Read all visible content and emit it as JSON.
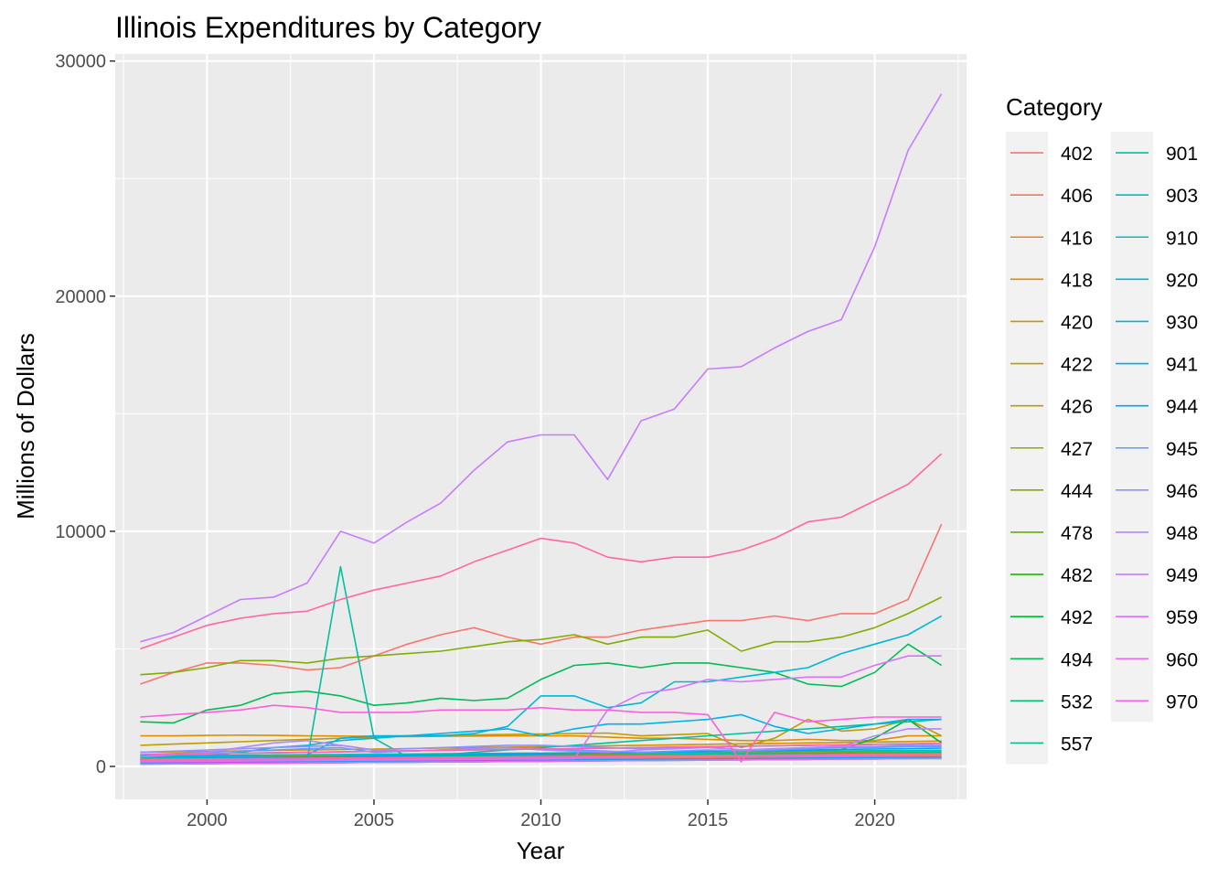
{
  "chart_data": {
    "type": "line",
    "title": "Illinois Expenditures by Category",
    "xlabel": "Year",
    "ylabel": "Millions of Dollars",
    "xlim": [
      1997.25,
      2022.75
    ],
    "ylim": [
      -1400,
      30300
    ],
    "x_ticks": [
      2000,
      2005,
      2010,
      2015,
      2020
    ],
    "y_ticks": [
      0,
      10000,
      20000,
      30000
    ],
    "grid": true,
    "legend": {
      "title": "Category",
      "placement": "right",
      "columns": 2
    },
    "x": [
      1998,
      1999,
      2000,
      2001,
      2002,
      2003,
      2004,
      2005,
      2006,
      2007,
      2008,
      2009,
      2010,
      2011,
      2012,
      2013,
      2014,
      2015,
      2016,
      2017,
      2018,
      2019,
      2020,
      2021,
      2022
    ],
    "series": [
      {
        "name": "402",
        "color": "#F8766D",
        "values": [
          3500,
          4000,
          4400,
          4400,
          4300,
          4100,
          4200,
          4700,
          5200,
          5600,
          5900,
          5500,
          5200,
          5500,
          5500,
          5800,
          6000,
          6200,
          6200,
          6400,
          6200,
          6500,
          6500,
          7100,
          10300
        ]
      },
      {
        "name": "406",
        "color": "#F07E4F",
        "values": [
          200,
          200,
          210,
          220,
          230,
          240,
          250,
          260,
          270,
          280,
          290,
          300,
          310,
          320,
          330,
          340,
          350,
          360,
          370,
          380,
          390,
          400,
          410,
          420,
          430
        ]
      },
      {
        "name": "416",
        "color": "#E7861B",
        "values": [
          300,
          310,
          320,
          330,
          340,
          350,
          360,
          370,
          380,
          390,
          400,
          410,
          420,
          430,
          440,
          450,
          460,
          470,
          480,
          490,
          500,
          510,
          520,
          530,
          540
        ]
      },
      {
        "name": "418",
        "color": "#DB8E00",
        "values": [
          1300,
          1300,
          1320,
          1330,
          1320,
          1300,
          1290,
          1280,
          1270,
          1280,
          1290,
          1300,
          1300,
          1300,
          1250,
          1200,
          1200,
          1150,
          1100,
          1100,
          1150,
          1100,
          1100,
          1300,
          1300
        ]
      },
      {
        "name": "420",
        "color": "#CE9500",
        "values": [
          600,
          620,
          640,
          660,
          680,
          700,
          720,
          740,
          760,
          780,
          800,
          820,
          840,
          860,
          880,
          900,
          920,
          940,
          960,
          980,
          1000,
          1020,
          1040,
          1060,
          1080
        ]
      },
      {
        "name": "422",
        "color": "#BF9C00",
        "values": [
          900,
          950,
          1000,
          1050,
          1100,
          1150,
          1200,
          1250,
          1300,
          1320,
          1340,
          1360,
          1380,
          1400,
          1420,
          1300,
          1350,
          1400,
          800,
          1200,
          2000,
          1500,
          1600,
          2000,
          1300
        ]
      },
      {
        "name": "426",
        "color": "#AEA200",
        "values": [
          100,
          110,
          120,
          130,
          140,
          150,
          160,
          170,
          180,
          190,
          200,
          210,
          220,
          230,
          240,
          250,
          260,
          270,
          280,
          290,
          300,
          310,
          320,
          330,
          340
        ]
      },
      {
        "name": "427",
        "color": "#9AA800",
        "values": [
          400,
          410,
          420,
          430,
          440,
          450,
          460,
          470,
          480,
          490,
          500,
          510,
          520,
          530,
          540,
          550,
          560,
          570,
          580,
          590,
          600,
          610,
          620,
          630,
          640
        ]
      },
      {
        "name": "444",
        "color": "#82AD00",
        "values": [
          3900,
          4000,
          4200,
          4500,
          4500,
          4400,
          4600,
          4700,
          4800,
          4900,
          5100,
          5300,
          5400,
          5600,
          5200,
          5500,
          5500,
          5800,
          4900,
          5300,
          5300,
          5500,
          5900,
          6500,
          7200
        ]
      },
      {
        "name": "478",
        "color": "#61B200",
        "values": [
          150,
          160,
          170,
          180,
          190,
          200,
          210,
          220,
          230,
          240,
          250,
          260,
          270,
          280,
          290,
          300,
          310,
          320,
          330,
          340,
          350,
          360,
          370,
          380,
          390
        ]
      },
      {
        "name": "482",
        "color": "#1EB600",
        "values": [
          250,
          260,
          270,
          280,
          290,
          300,
          310,
          320,
          330,
          340,
          350,
          360,
          370,
          380,
          390,
          400,
          410,
          420,
          430,
          440,
          450,
          460,
          470,
          480,
          490
        ]
      },
      {
        "name": "492",
        "color": "#00B930",
        "values": [
          300,
          320,
          340,
          360,
          380,
          400,
          420,
          440,
          460,
          480,
          500,
          520,
          540,
          560,
          580,
          600,
          620,
          640,
          660,
          680,
          700,
          720,
          1200,
          2000,
          1000
        ]
      },
      {
        "name": "494",
        "color": "#00BC56",
        "values": [
          1900,
          1850,
          2400,
          2600,
          3100,
          3200,
          3000,
          2600,
          2700,
          2900,
          2800,
          2900,
          3700,
          4300,
          4400,
          4200,
          4400,
          4400,
          4200,
          4000,
          3500,
          3400,
          4000,
          5200,
          4300
        ]
      },
      {
        "name": "532",
        "color": "#00BE72",
        "values": [
          500,
          520,
          540,
          560,
          580,
          600,
          620,
          640,
          660,
          680,
          700,
          720,
          740,
          760,
          780,
          800,
          820,
          840,
          860,
          880,
          900,
          920,
          940,
          960,
          980
        ]
      },
      {
        "name": "557",
        "color": "#00BF8A",
        "values": [
          350,
          360,
          370,
          380,
          390,
          400,
          410,
          420,
          430,
          440,
          450,
          460,
          470,
          480,
          490,
          500,
          510,
          520,
          530,
          540,
          550,
          560,
          570,
          580,
          590
        ]
      },
      {
        "name": "901",
        "color": "#00C0A0",
        "values": [
          200,
          210,
          220,
          230,
          240,
          250,
          8500,
          1200,
          400,
          500,
          600,
          700,
          800,
          900,
          1000,
          1100,
          1200,
          1300,
          1400,
          1500,
          1600,
          1700,
          1800,
          1900,
          2000
        ]
      },
      {
        "name": "903",
        "color": "#00BFB4",
        "values": [
          450,
          460,
          470,
          480,
          490,
          500,
          510,
          520,
          530,
          540,
          550,
          560,
          570,
          580,
          590,
          600,
          610,
          620,
          630,
          640,
          650,
          660,
          670,
          680,
          690
        ]
      },
      {
        "name": "910",
        "color": "#00BCC6",
        "values": [
          100,
          110,
          120,
          130,
          140,
          150,
          160,
          170,
          180,
          190,
          200,
          210,
          220,
          230,
          240,
          250,
          260,
          270,
          280,
          290,
          300,
          310,
          320,
          330,
          340
        ]
      },
      {
        "name": "920",
        "color": "#00B8D6",
        "values": [
          300,
          350,
          450,
          600,
          800,
          900,
          1100,
          1200,
          1300,
          1300,
          1400,
          1700,
          3000,
          3000,
          2500,
          2700,
          3600,
          3600,
          3800,
          4000,
          4200,
          4800,
          5200,
          5600,
          6400
        ]
      },
      {
        "name": "930",
        "color": "#00B2E5",
        "values": [
          400,
          420,
          440,
          460,
          480,
          500,
          1200,
          1300,
          1300,
          1400,
          1500,
          1600,
          1300,
          1600,
          1800,
          1800,
          1900,
          2000,
          2200,
          1700,
          1400,
          1600,
          1800,
          2000,
          2000
        ]
      },
      {
        "name": "941",
        "color": "#00ABF1",
        "values": [
          150,
          160,
          170,
          180,
          190,
          200,
          210,
          220,
          230,
          240,
          250,
          260,
          270,
          280,
          290,
          300,
          310,
          320,
          330,
          340,
          350,
          360,
          370,
          380,
          390
        ]
      },
      {
        "name": "944",
        "color": "#00A3FB",
        "values": [
          300,
          320,
          340,
          360,
          380,
          400,
          420,
          440,
          460,
          480,
          500,
          520,
          540,
          560,
          580,
          600,
          620,
          640,
          660,
          680,
          700,
          720,
          740,
          760,
          780
        ]
      },
      {
        "name": "945",
        "color": "#619CFF",
        "values": [
          500,
          550,
          600,
          650,
          700,
          750,
          800,
          600,
          650,
          700,
          750,
          800,
          750,
          700,
          650,
          600,
          650,
          700,
          650,
          700,
          750,
          800,
          800,
          850,
          850
        ]
      },
      {
        "name": "946",
        "color": "#8E92FF",
        "values": [
          600,
          650,
          700,
          750,
          800,
          850,
          900,
          700,
          750,
          800,
          850,
          900,
          900,
          850,
          800,
          750,
          800,
          850,
          700,
          750,
          800,
          850,
          850,
          900,
          900
        ]
      },
      {
        "name": "948",
        "color": "#AF88FF",
        "values": [
          400,
          500,
          600,
          800,
          1000,
          1100,
          900,
          700,
          650,
          700,
          750,
          800,
          700,
          650,
          600,
          700,
          750,
          800,
          700,
          750,
          800,
          850,
          1300,
          1600,
          1600
        ]
      },
      {
        "name": "949",
        "color": "#C77CFF",
        "values": [
          5300,
          5700,
          6400,
          7100,
          7200,
          7800,
          10000,
          9500,
          10400,
          11200,
          12600,
          13800,
          14100,
          14100,
          12200,
          14700,
          15200,
          16900,
          17000,
          17800,
          18500,
          19000,
          22100,
          26200,
          28600
        ]
      },
      {
        "name": "959",
        "color": "#DA72FA",
        "values": [
          200,
          210,
          220,
          230,
          240,
          250,
          260,
          270,
          280,
          290,
          300,
          310,
          320,
          330,
          2400,
          3100,
          3300,
          3700,
          3600,
          3700,
          3800,
          3800,
          4300,
          4700,
          4700
        ]
      },
      {
        "name": "960",
        "color": "#E86AF0",
        "values": [
          100,
          110,
          120,
          130,
          140,
          150,
          160,
          170,
          180,
          190,
          200,
          210,
          220,
          230,
          240,
          250,
          260,
          270,
          280,
          290,
          300,
          310,
          320,
          330,
          340
        ]
      },
      {
        "name": "970",
        "color": "#F365E3",
        "values": [
          250,
          260,
          270,
          280,
          290,
          300,
          310,
          320,
          330,
          340,
          350,
          360,
          370,
          380,
          390,
          400,
          410,
          420,
          430,
          440,
          450,
          460,
          470,
          480,
          490
        ]
      },
      {
        "name": "",
        "color": "#FB61D7",
        "values": [
          2100,
          2200,
          2300,
          2400,
          2600,
          2500,
          2300,
          2300,
          2300,
          2400,
          2400,
          2400,
          2500,
          2400,
          2400,
          2300,
          2300,
          2200,
          200,
          2300,
          1900,
          2000,
          2100,
          2100,
          2100
        ]
      },
      {
        "name": "",
        "color": "#FF62BC",
        "values": [
          500,
          520,
          540,
          560,
          580,
          600,
          620,
          640,
          660,
          680,
          700,
          720,
          740,
          760,
          780,
          800,
          820,
          840,
          860,
          880,
          900,
          920,
          940,
          960,
          980
        ]
      },
      {
        "name": "",
        "color": "#FF67A4",
        "values": [
          5000,
          5500,
          6000,
          6300,
          6500,
          6600,
          7100,
          7500,
          7800,
          8100,
          8700,
          9200,
          9700,
          9500,
          8900,
          8700,
          8900,
          8900,
          9200,
          9700,
          10400,
          10600,
          11300,
          12000,
          13300
        ]
      },
      {
        "name": "",
        "color": "#FF6C91",
        "values": [
          300,
          310,
          320,
          330,
          340,
          350,
          360,
          370,
          380,
          390,
          400,
          410,
          420,
          430,
          440,
          450,
          460,
          470,
          480,
          490,
          500,
          510,
          520,
          530,
          540
        ]
      }
    ],
    "legend_labels": [
      "402",
      "406",
      "416",
      "418",
      "420",
      "422",
      "426",
      "427",
      "444",
      "478",
      "482",
      "492",
      "494",
      "532",
      "557",
      "901",
      "903",
      "910",
      "920",
      "930",
      "941",
      "944",
      "945",
      "946",
      "948",
      "949",
      "959",
      "960",
      "970"
    ],
    "legend_colors": [
      "#F8766D",
      "#F07E4F",
      "#E7861B",
      "#DB8E00",
      "#CE9500",
      "#BF9C00",
      "#AEA200",
      "#9AA800",
      "#82AD00",
      "#61B200",
      "#1EB600",
      "#00B930",
      "#00BC56",
      "#00BE72",
      "#00BF8A",
      "#00C0A0",
      "#00BFB4",
      "#00BCC6",
      "#00B8D6",
      "#00B2E5",
      "#00ABF1",
      "#00A3FB",
      "#619CFF",
      "#8E92FF",
      "#AF88FF",
      "#C77CFF",
      "#DA72FA",
      "#E86AF0",
      "#F365E3"
    ]
  }
}
